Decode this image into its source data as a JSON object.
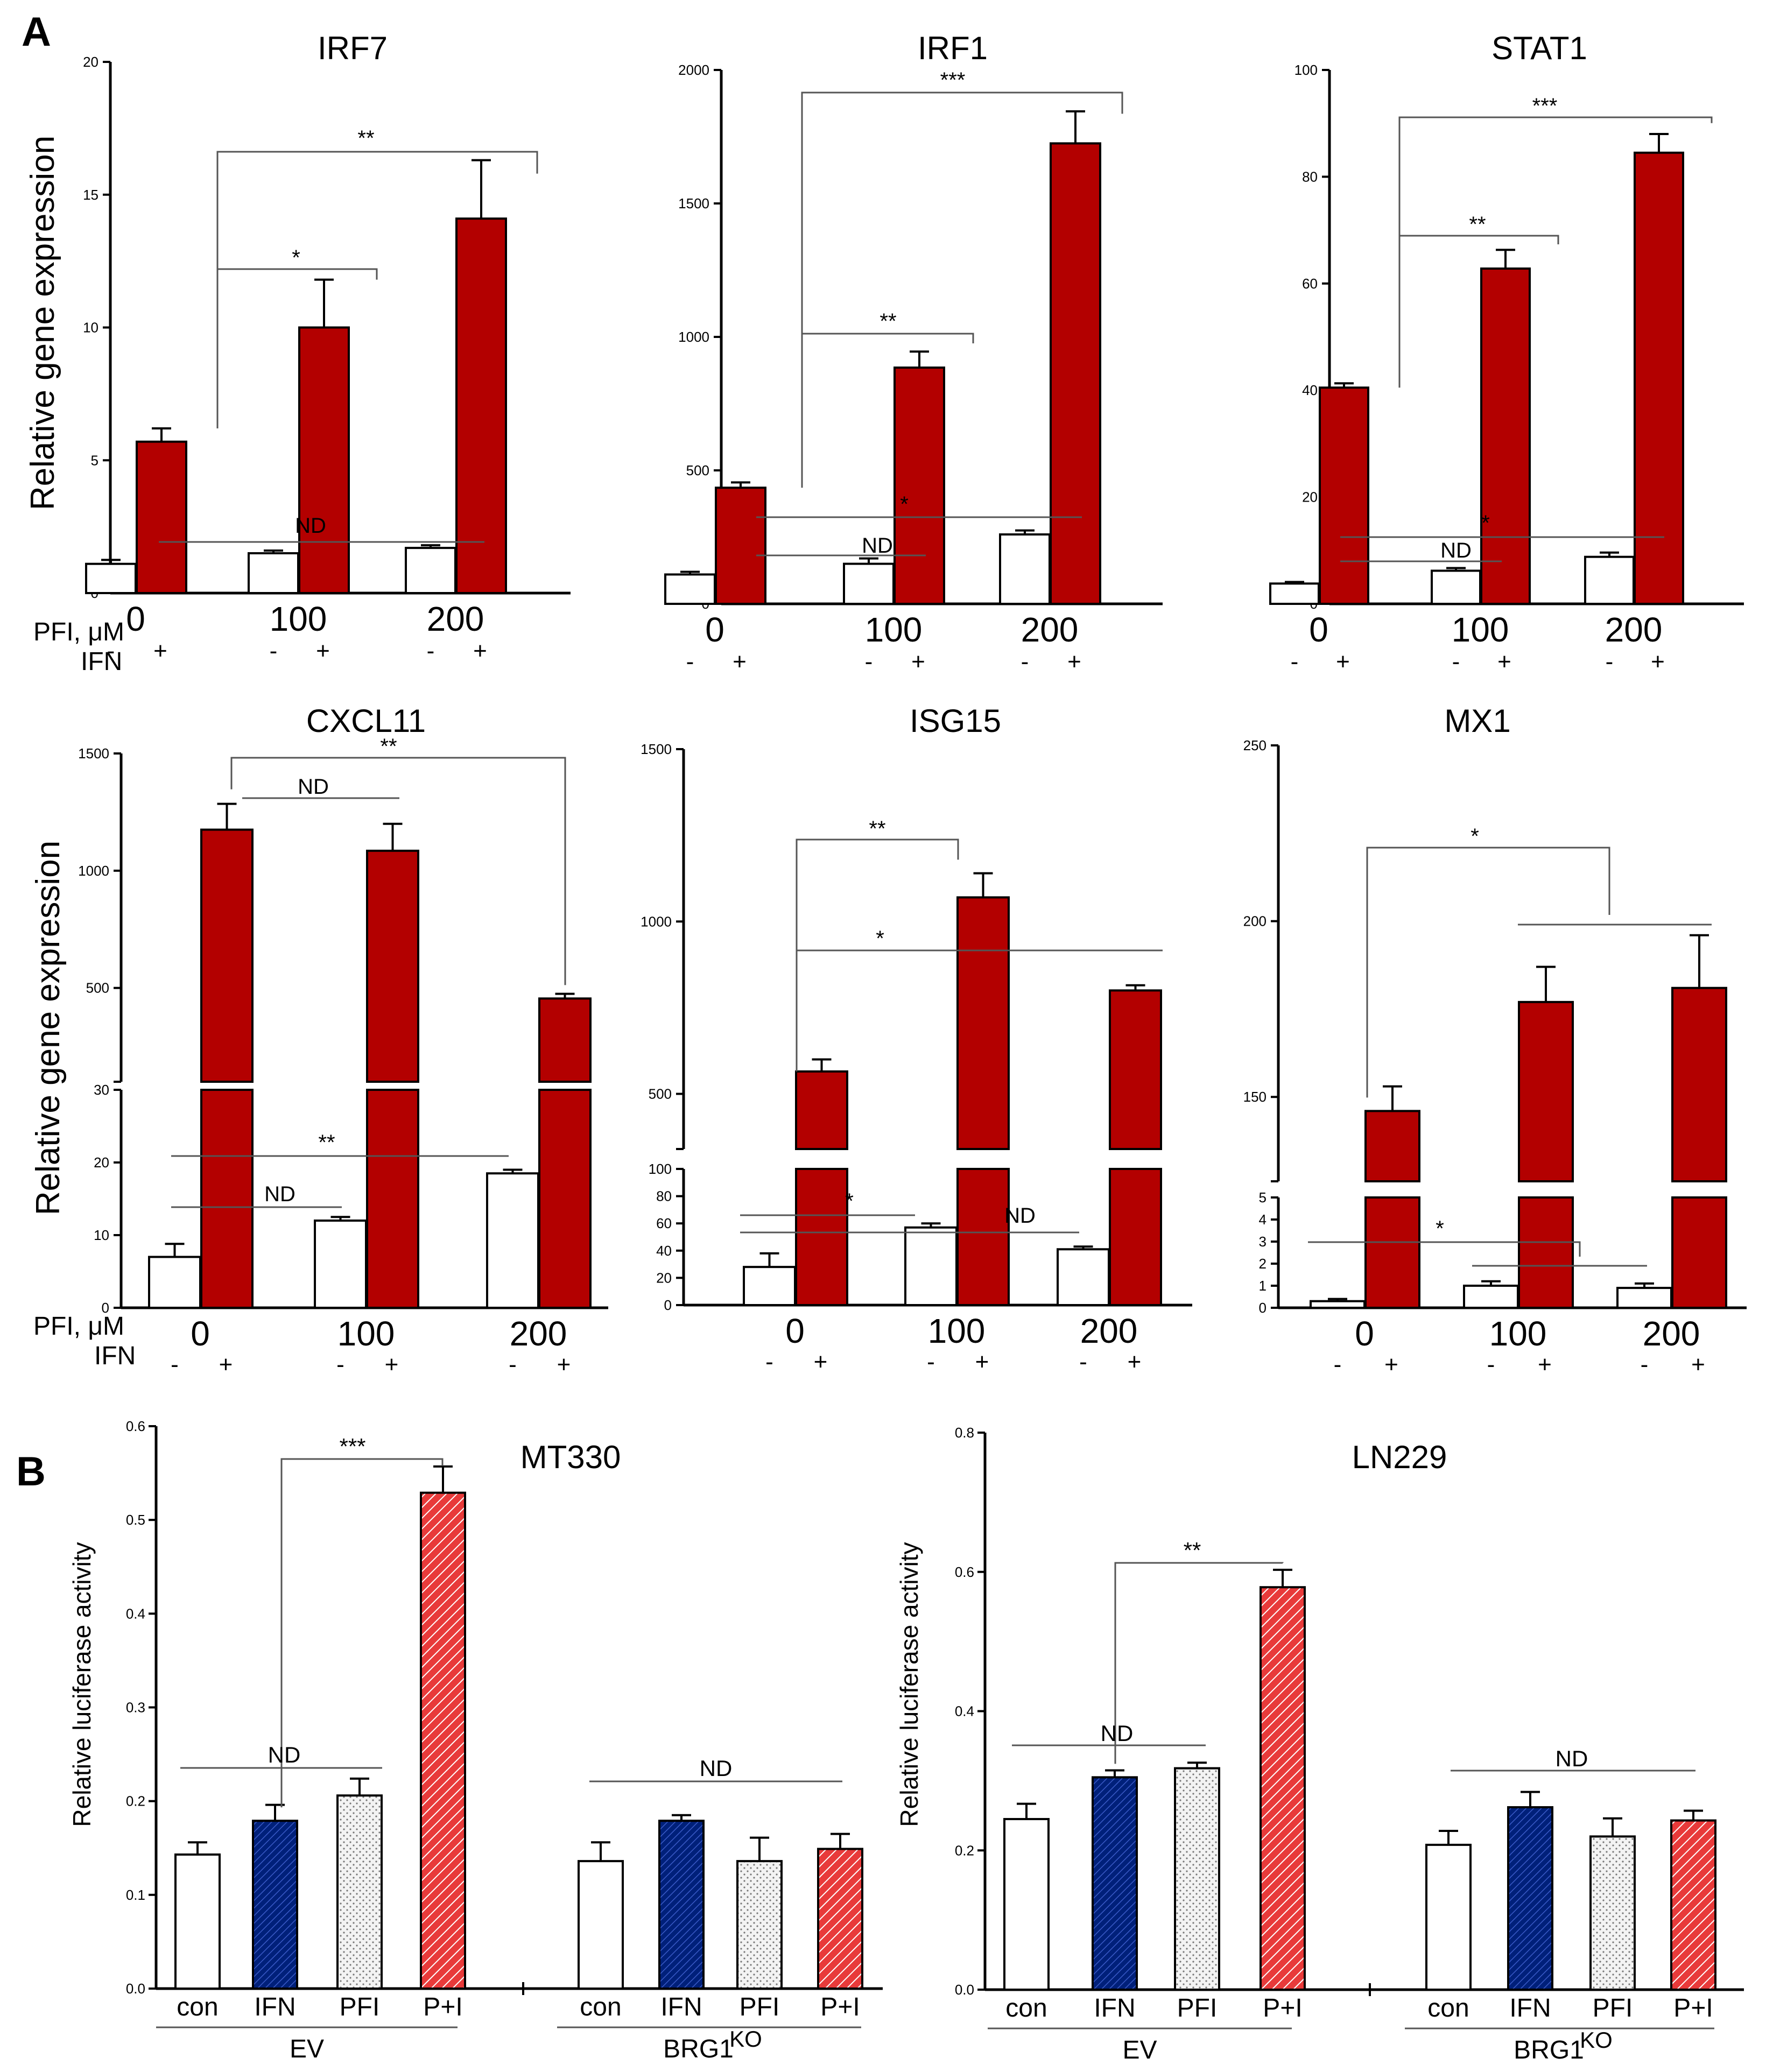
{
  "labels": {
    "panelA": "A",
    "panelB": "B",
    "ylabelA": "Relative gene expression",
    "ylabelB": "Relative luciferase activity",
    "pfi": "PFI, μM",
    "ifn": "IFN",
    "ev": "EV",
    "brg1": "BRG1",
    "brg1_sup": "KO"
  },
  "colors": {
    "red": "#b30000",
    "white": "#ffffff",
    "blue": "#00207a",
    "dotted": "#e8e8e8",
    "hatched": "#e83a3a"
  },
  "chart_data": [
    {
      "type": "bar",
      "title": "IRF7",
      "ylabel": "Relative gene expression",
      "ylim": [
        0,
        20
      ],
      "yticks": [
        "0",
        "5",
        "10",
        "15",
        "20"
      ],
      "categories": [
        "0",
        "100",
        "200"
      ],
      "x_sub": [
        "-",
        "+"
      ],
      "series": [
        {
          "name": "-",
          "values": [
            1.1,
            1.5,
            1.7
          ],
          "errors": [
            0.15,
            0.1,
            0.1
          ]
        },
        {
          "name": "+",
          "values": [
            5.7,
            10.0,
            14.1
          ],
          "errors": [
            0.5,
            1.8,
            2.2
          ]
        }
      ],
      "annotations": [
        {
          "text": "**",
          "between": [
            "0+",
            "200+"
          ]
        },
        {
          "text": "*",
          "between": [
            "0+",
            "100+"
          ]
        },
        {
          "text": "ND",
          "between": [
            "0-",
            "200-"
          ]
        }
      ]
    },
    {
      "type": "bar",
      "title": "IRF1",
      "ylim": [
        0,
        2000
      ],
      "yticks": [
        "0",
        "500",
        "1000",
        "1500",
        "2000"
      ],
      "categories": [
        "0",
        "100",
        "200"
      ],
      "series": [
        {
          "name": "-",
          "values": [
            110,
            150,
            260
          ],
          "errors": [
            10,
            20,
            15
          ]
        },
        {
          "name": "+",
          "values": [
            435,
            885,
            1725
          ],
          "errors": [
            20,
            60,
            120
          ]
        }
      ],
      "annotations": [
        {
          "text": "***",
          "between": [
            "0+",
            "200+"
          ]
        },
        {
          "text": "**",
          "between": [
            "0+",
            "100+"
          ]
        },
        {
          "text": "*",
          "between": [
            "0-",
            "200-"
          ]
        },
        {
          "text": "ND",
          "between": [
            "0-",
            "100-"
          ]
        }
      ]
    },
    {
      "type": "bar",
      "title": "STAT1",
      "ylim": [
        0,
        100
      ],
      "yticks": [
        "0",
        "20",
        "40",
        "60",
        "80",
        "100"
      ],
      "categories": [
        "0",
        "100",
        "200"
      ],
      "series": [
        {
          "name": "-",
          "values": [
            3.8,
            6.2,
            8.8
          ],
          "errors": [
            0.3,
            0.5,
            0.8
          ]
        },
        {
          "name": "+",
          "values": [
            40.5,
            62.8,
            84.5
          ],
          "errors": [
            0.8,
            3.5,
            3.5
          ]
        }
      ],
      "annotations": [
        {
          "text": "***",
          "between": [
            "0+",
            "200+"
          ]
        },
        {
          "text": "**",
          "between": [
            "0+",
            "100+"
          ]
        },
        {
          "text": "*",
          "between": [
            "0-",
            "200-"
          ]
        },
        {
          "text": "ND",
          "between": [
            "0-",
            "100-"
          ]
        }
      ]
    },
    {
      "type": "bar",
      "title": "CXCL11",
      "ylabel": "Relative gene expression",
      "broken_axis": true,
      "lower_ylim": [
        0,
        30
      ],
      "lower_yticks": [
        "0",
        "10",
        "20",
        "30"
      ],
      "upper_ylim": [
        100,
        1500
      ],
      "upper_yticks": [
        "500",
        "1000",
        "1500"
      ],
      "categories": [
        "0",
        "100",
        "200"
      ],
      "series": [
        {
          "name": "-",
          "values": [
            7,
            12,
            18.5
          ],
          "errors": [
            1.8,
            0.5,
            0.5
          ]
        },
        {
          "name": "+",
          "values": [
            1175,
            1085,
            455
          ],
          "errors": [
            110,
            115,
            20
          ]
        }
      ],
      "annotations": [
        {
          "text": "**",
          "between": [
            "0+",
            "200+"
          ]
        },
        {
          "text": "ND",
          "between": [
            "0+",
            "100+"
          ]
        },
        {
          "text": "**",
          "between": [
            "0-",
            "200-"
          ]
        },
        {
          "text": "ND",
          "between": [
            "0-",
            "100-"
          ]
        }
      ]
    },
    {
      "type": "bar",
      "title": "ISG15",
      "broken_axis": true,
      "lower_ylim": [
        0,
        100
      ],
      "lower_yticks": [
        "0",
        "20",
        "40",
        "60",
        "80",
        "100"
      ],
      "upper_ylim": [
        340,
        1500
      ],
      "upper_yticks": [
        "500",
        "1000",
        "1500"
      ],
      "categories": [
        "0",
        "100",
        "200"
      ],
      "series": [
        {
          "name": "-",
          "values": [
            28,
            57,
            41
          ],
          "errors": [
            10,
            3,
            2
          ]
        },
        {
          "name": "+",
          "values": [
            565,
            1070,
            800
          ],
          "errors": [
            35,
            70,
            15
          ]
        }
      ],
      "annotations": [
        {
          "text": "**",
          "between": [
            "0+",
            "100+"
          ]
        },
        {
          "text": "*",
          "between": [
            "0+",
            "200+"
          ]
        },
        {
          "text": "*",
          "between": [
            "0-",
            "100-"
          ]
        },
        {
          "text": "ND",
          "between": [
            "0-",
            "200-"
          ]
        }
      ]
    },
    {
      "type": "bar",
      "title": "MX1",
      "broken_axis": true,
      "lower_ylim": [
        0,
        5
      ],
      "lower_yticks": [
        "0",
        "1",
        "2",
        "3",
        "4",
        "5"
      ],
      "upper_ylim": [
        126,
        250
      ],
      "upper_yticks": [
        "150",
        "200",
        "250"
      ],
      "categories": [
        "0",
        "100",
        "200"
      ],
      "series": [
        {
          "name": "-",
          "values": [
            0.3,
            1.0,
            0.9
          ],
          "errors": [
            0.1,
            0.2,
            0.2
          ]
        },
        {
          "name": "+",
          "values": [
            146,
            177,
            181
          ],
          "errors": [
            7,
            10,
            15
          ]
        }
      ],
      "annotations": [
        {
          "text": "*",
          "between": [
            "0+",
            "100+/200+"
          ]
        },
        {
          "text": "*",
          "between": [
            "0-",
            "100-/200-"
          ]
        }
      ]
    },
    {
      "type": "bar",
      "title": "MT330",
      "ylabel": "Relative luciferase activity",
      "ylim": [
        0,
        0.6
      ],
      "yticks": [
        "0.0",
        "0.1",
        "0.2",
        "0.3",
        "0.4",
        "0.5",
        "0.6"
      ],
      "groups": [
        "EV",
        "BRG1KO"
      ],
      "categories": [
        "con",
        "IFN",
        "PFI",
        "P+I"
      ],
      "series": [
        {
          "name": "EV",
          "values": [
            0.143,
            0.179,
            0.206,
            0.529
          ],
          "errors": [
            0.013,
            0.017,
            0.018,
            0.028
          ]
        },
        {
          "name": "BRG1KO",
          "values": [
            0.136,
            0.179,
            0.136,
            0.149
          ],
          "errors": [
            0.02,
            0.006,
            0.025,
            0.016
          ]
        }
      ],
      "annotations": [
        {
          "text": "***",
          "between": [
            "EV con",
            "EV P+I"
          ]
        },
        {
          "text": "ND",
          "between": [
            "EV con",
            "EV PFI"
          ]
        },
        {
          "text": "ND",
          "between": [
            "BRG1KO con",
            "BRG1KO P+I"
          ]
        }
      ]
    },
    {
      "type": "bar",
      "title": "LN229",
      "ylabel": "Relative luciferase activity",
      "ylim": [
        0,
        0.8
      ],
      "yticks": [
        "0.0",
        "0.2",
        "0.4",
        "0.6",
        "0.8"
      ],
      "groups": [
        "EV",
        "BRG1KO"
      ],
      "categories": [
        "con",
        "IFN",
        "PFI",
        "P+I"
      ],
      "series": [
        {
          "name": "EV",
          "values": [
            0.245,
            0.305,
            0.318,
            0.578
          ],
          "errors": [
            0.022,
            0.01,
            0.008,
            0.025
          ]
        },
        {
          "name": "BRG1KO",
          "values": [
            0.208,
            0.262,
            0.22,
            0.243
          ],
          "errors": [
            0.02,
            0.022,
            0.026,
            0.014
          ]
        }
      ],
      "annotations": [
        {
          "text": "**",
          "between": [
            "EV con",
            "EV P+I"
          ]
        },
        {
          "text": "ND",
          "between": [
            "EV con",
            "EV PFI"
          ]
        },
        {
          "text": "ND",
          "between": [
            "BRG1KO con",
            "BRG1KO P+I"
          ]
        }
      ]
    }
  ]
}
